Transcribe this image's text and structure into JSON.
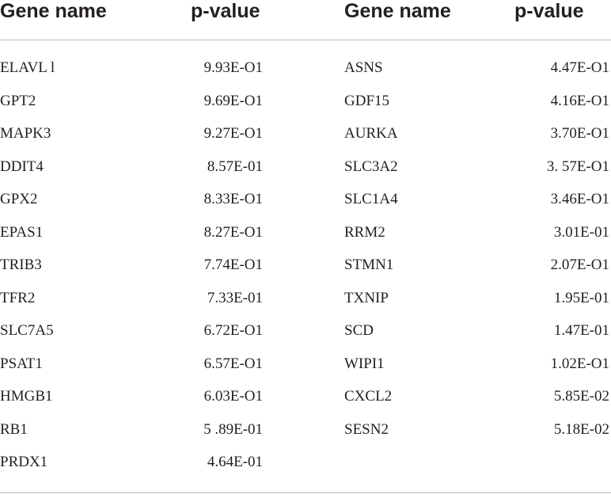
{
  "table": {
    "headers": [
      "Gene name",
      "p-value",
      "Gene name",
      "p-value"
    ],
    "left_rows": [
      {
        "gene": "ELAVL l",
        "pvalue": "9.93E-O1"
      },
      {
        "gene": "GPT2",
        "pvalue": "9.69E-O1"
      },
      {
        "gene": "MAPK3",
        "pvalue": "9.27E-O1"
      },
      {
        "gene": "DDIT4",
        "pvalue": "8.57E-01"
      },
      {
        "gene": "GPX2",
        "pvalue": "8.33E-O1"
      },
      {
        "gene": "EPAS1",
        "pvalue": "8.27E-O1"
      },
      {
        "gene": "TRIB3",
        "pvalue": "7.74E-O1"
      },
      {
        "gene": "TFR2",
        "pvalue": "7.33E-01"
      },
      {
        "gene": "SLC7A5",
        "pvalue": "6.72E-O1"
      },
      {
        "gene": "PSAT1",
        "pvalue": "6.57E-O1"
      },
      {
        "gene": "HMGB1",
        "pvalue": "6.03E-O1"
      },
      {
        "gene": "RB1",
        "pvalue": "5 .89E-01"
      },
      {
        "gene": "PRDX1",
        "pvalue": "4.64E-01"
      }
    ],
    "right_rows": [
      {
        "gene": "ASNS",
        "pvalue": "4.47E-O1"
      },
      {
        "gene": "GDF15",
        "pvalue": "4.16E-O1"
      },
      {
        "gene": "AURKA",
        "pvalue": "3.70E-O1"
      },
      {
        "gene": "SLC3A2",
        "pvalue": "3. 57E-O1"
      },
      {
        "gene": "SLC1A4",
        "pvalue": "3.46E-O1"
      },
      {
        "gene": "RRM2",
        "pvalue": "3.01E-01"
      },
      {
        "gene": "STMN1",
        "pvalue": "2.07E-O1"
      },
      {
        "gene": "TXNIP",
        "pvalue": "1.95E-01"
      },
      {
        "gene": "SCD",
        "pvalue": "1.47E-01"
      },
      {
        "gene": "WIPI1",
        "pvalue": "1.02E-O1"
      },
      {
        "gene": "CXCL2",
        "pvalue": "5.85E-02"
      },
      {
        "gene": "SESN2",
        "pvalue": "5.18E-02"
      }
    ]
  }
}
